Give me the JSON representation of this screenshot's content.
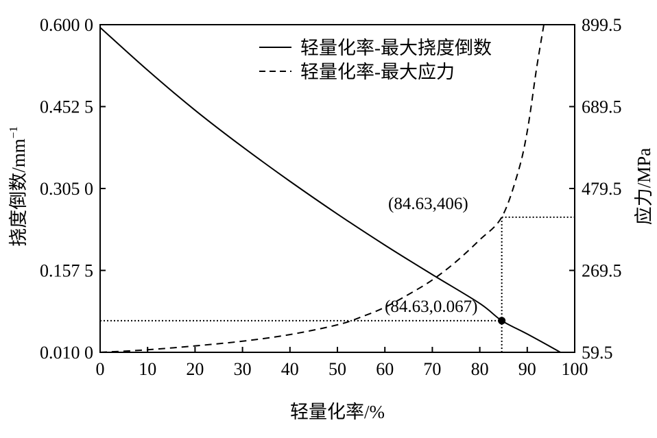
{
  "chart_data": {
    "type": "line",
    "xlabel": "轻量化率/%",
    "ylabel_left": "挠度倒数/mm",
    "ylabel_left_sup": "−1",
    "ylabel_right": "应力/MPa",
    "xlim": [
      0,
      100
    ],
    "ylim_left": [
      0.01,
      0.6
    ],
    "ylim_right": [
      59.5,
      899.5
    ],
    "x_ticks": [
      "0",
      "10",
      "20",
      "30",
      "40",
      "50",
      "60",
      "70",
      "80",
      "90",
      "100"
    ],
    "y_left_ticks": [
      "0.010 0",
      "0.157 5",
      "0.305 0",
      "0.452 5",
      "0.600 0"
    ],
    "y_right_ticks": [
      "59.5",
      "269.5",
      "479.5",
      "689.5",
      "899.5"
    ],
    "grid": false,
    "legend_position": "top-right",
    "series": [
      {
        "name": "轻量化率-最大挠度倒数",
        "axis": "left",
        "style": "solid",
        "x": [
          0,
          10,
          20,
          30,
          40,
          50,
          60,
          70,
          80,
          84.63,
          90,
          97
        ],
        "y": [
          0.595,
          0.518,
          0.446,
          0.38,
          0.318,
          0.259,
          0.203,
          0.15,
          0.098,
          0.067,
          0.043,
          0.01
        ]
      },
      {
        "name": "轻量化率-最大应力",
        "axis": "right",
        "style": "dashed",
        "x": [
          0,
          10,
          20,
          30,
          40,
          50,
          55,
          60,
          65,
          70,
          75,
          80,
          84.63,
          88,
          90,
          92,
          93.5
        ],
        "y": [
          59.5,
          66,
          76,
          88,
          105,
          130,
          150,
          175,
          208,
          245,
          292,
          348,
          406,
          519,
          626,
          790,
          899.5
        ]
      }
    ],
    "annotations": [
      {
        "text": "(84.63,406)",
        "x": 84.63,
        "y": 406,
        "axis": "right"
      },
      {
        "text": "(84.63,0.067)",
        "x": 84.63,
        "y": 0.067,
        "axis": "left"
      }
    ]
  }
}
